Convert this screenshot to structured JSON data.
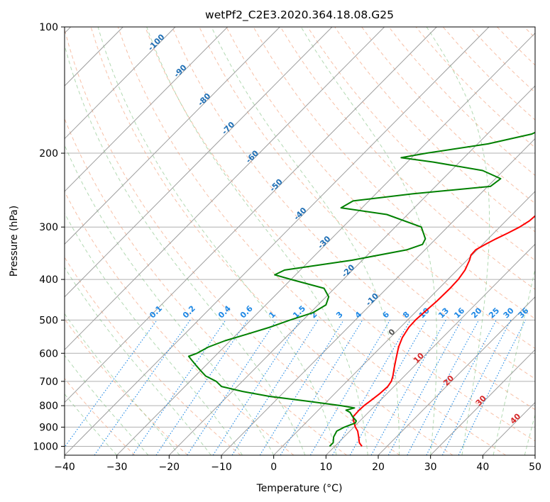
{
  "chart_data": {
    "type": "line",
    "title": "wetPf2_C2E3.2020.364.18.08.G25",
    "xlabel": "Temperature (°C)",
    "ylabel": "Pressure (hPa)",
    "xlim": [
      -40,
      50
    ],
    "ylim": [
      1050,
      100
    ],
    "y_scale": "log",
    "grid": true,
    "x_ticks": [
      "−40",
      "−30",
      "−20",
      "−10",
      "0",
      "10",
      "20",
      "30",
      "40",
      "50"
    ],
    "y_ticks": [
      "100",
      "200",
      "300",
      "400",
      "500",
      "600",
      "700",
      "800",
      "900",
      "1000"
    ],
    "colors": {
      "temperature": "#ff0000",
      "dewpoint": "#008000",
      "dry_adiabat": "#f4a582",
      "moist_adiabat": "#7fbf7f",
      "mixing_ratio": "#1e88e5",
      "isotherm": "#9e9e9e",
      "isotherm_label_cold": "#1f6fb5",
      "isotherm_label_warm": "#d62728"
    },
    "series": [
      {
        "id": "temperature",
        "pressures": [
          1000,
          980,
          950,
          920,
          900,
          870,
          850,
          820,
          800,
          780,
          750,
          720,
          700,
          680,
          650,
          620,
          600,
          580,
          550,
          520,
          500,
          480,
          450,
          420,
          400,
          380,
          360,
          350,
          340,
          330,
          320,
          310,
          300,
          290,
          280,
          270,
          260,
          250,
          240,
          230,
          220,
          210,
          200,
          190,
          180,
          170,
          160,
          150,
          140,
          130,
          120,
          110,
          100
        ],
        "values": [
          15.2,
          14,
          12.8,
          11.5,
          10.3,
          8.8,
          7.9,
          7.8,
          7.9,
          8.2,
          8.6,
          8.8,
          8.5,
          7.8,
          6.5,
          5.2,
          4.3,
          3.4,
          2.3,
          1.6,
          1.5,
          1.7,
          2.0,
          2.1,
          2.0,
          1.5,
          0.5,
          -0.2,
          -0.3,
          0.5,
          1.5,
          2.7,
          3.8,
          4.5,
          4.7,
          4.4,
          4.2,
          4.4,
          5.0,
          5.5,
          6.3,
          7.0,
          7.3,
          7.7,
          8.4,
          9.7,
          11.4,
          12.9,
          14.1,
          14.8,
          15.2,
          15.5,
          16.3
        ]
      },
      {
        "id": "dewpoint",
        "pressures": [
          1000,
          980,
          950,
          920,
          900,
          880,
          870,
          850,
          830,
          820,
          810,
          800,
          780,
          760,
          740,
          720,
          700,
          680,
          660,
          650,
          640,
          630,
          620,
          610,
          600,
          580,
          560,
          540,
          520,
          500,
          480,
          460,
          440,
          420,
          400,
          390,
          380,
          360,
          340,
          330,
          320,
          300,
          280,
          270,
          260,
          250,
          240,
          230,
          220,
          210,
          205,
          200,
          190,
          180,
          170,
          160,
          150,
          140,
          130,
          125,
          120,
          115,
          110,
          100
        ],
        "values": [
          9.0,
          9.0,
          8.0,
          7.5,
          8.2,
          9.5,
          9.3,
          7.8,
          6.5,
          5.3,
          6.5,
          3.5,
          -4,
          -12,
          -18,
          -23,
          -25,
          -28,
          -30,
          -31,
          -32,
          -33,
          -34,
          -35,
          -34,
          -33,
          -31,
          -28,
          -25,
          -22.5,
          -19.5,
          -18.5,
          -19.5,
          -22,
          -30,
          -34,
          -33,
          -22,
          -13.5,
          -11.5,
          -12,
          -15,
          -24,
          -34,
          -33,
          -23,
          -9.5,
          -9,
          -14,
          -25,
          -32,
          -28,
          -18,
          -11.5,
          -9.3,
          -9.5,
          -11.2,
          -14,
          -15,
          -14.5,
          -12,
          -9,
          -6,
          2.5
        ]
      }
    ],
    "isotherm_labels": [
      "-100",
      "-90",
      "-80",
      "-70",
      "-60",
      "-50",
      "-40",
      "-30",
      "-20",
      "-10",
      "0",
      "10",
      "20",
      "30",
      "40"
    ],
    "mixing_ratio_labels": [
      "0.1",
      "0.2",
      "0.4",
      "0.6",
      "1",
      "1.5",
      "2",
      "3",
      "4",
      "6",
      "8",
      "10",
      "13",
      "16",
      "20",
      "25",
      "30",
      "36"
    ]
  }
}
